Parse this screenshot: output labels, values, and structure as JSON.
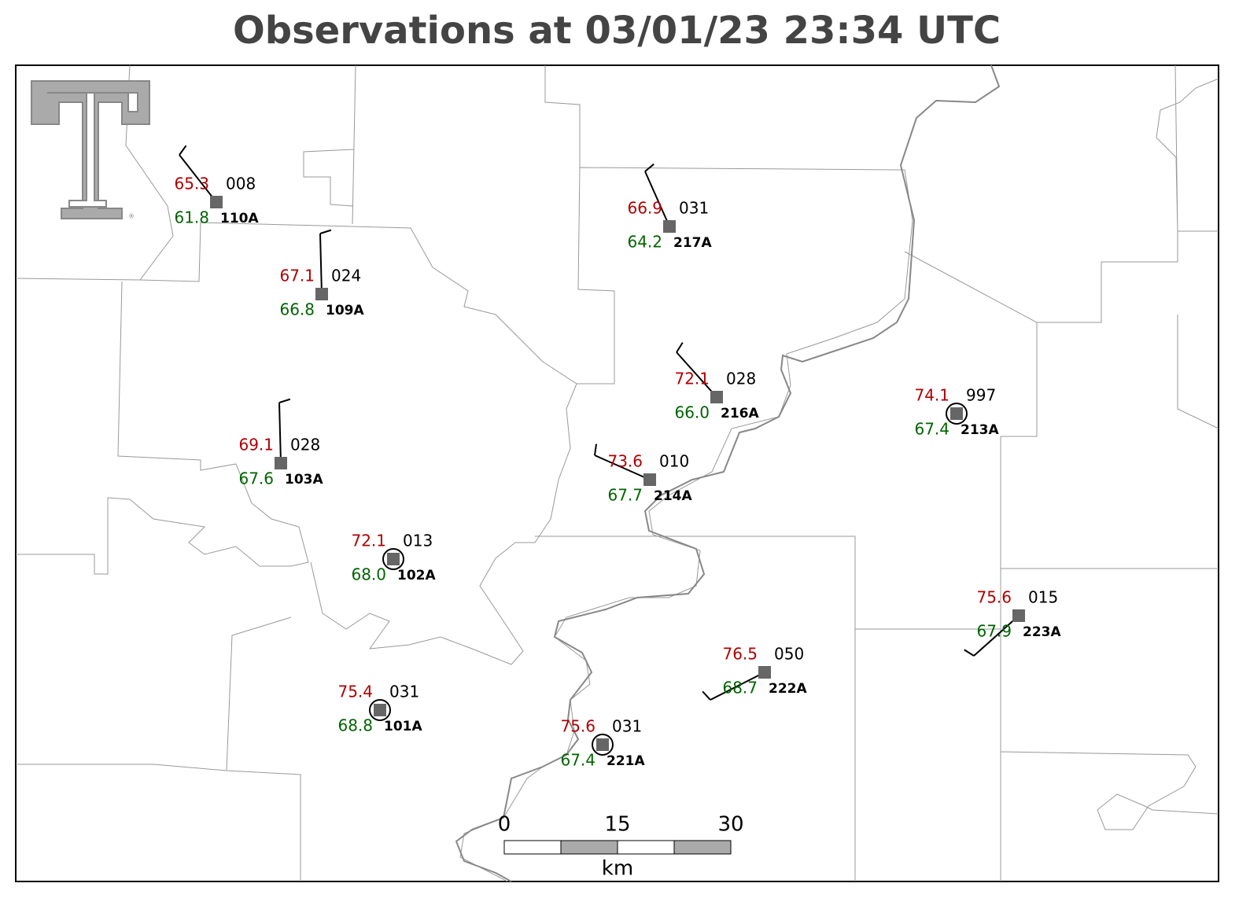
{
  "title": "Observations at 03/01/23 23:34 UTC",
  "logo": {
    "mark": "®"
  },
  "stations": [
    {
      "id": "110A",
      "temperature": "65.3",
      "pressure": "008",
      "dewpoint": "61.8"
    },
    {
      "id": "109A",
      "temperature": "67.1",
      "pressure": "024",
      "dewpoint": "66.8"
    },
    {
      "id": "217A",
      "temperature": "66.9",
      "pressure": "031",
      "dewpoint": "64.2"
    },
    {
      "id": "216A",
      "temperature": "72.1",
      "pressure": "028",
      "dewpoint": "66.0"
    },
    {
      "id": "213A",
      "temperature": "74.1",
      "pressure": "997",
      "dewpoint": "67.4"
    },
    {
      "id": "103A",
      "temperature": "69.1",
      "pressure": "028",
      "dewpoint": "67.6"
    },
    {
      "id": "214A",
      "temperature": "73.6",
      "pressure": "010",
      "dewpoint": "67.7"
    },
    {
      "id": "102A",
      "temperature": "72.1",
      "pressure": "013",
      "dewpoint": "68.0"
    },
    {
      "id": "223A",
      "temperature": "75.6",
      "pressure": "015",
      "dewpoint": "67.9"
    },
    {
      "id": "222A",
      "temperature": "76.5",
      "pressure": "050",
      "dewpoint": "68.7"
    },
    {
      "id": "101A",
      "temperature": "75.4",
      "pressure": "031",
      "dewpoint": "68.8"
    },
    {
      "id": "221A",
      "temperature": "75.6",
      "pressure": "031",
      "dewpoint": "67.4"
    }
  ],
  "scale_bar": {
    "ticks": [
      "0",
      "15",
      "30"
    ],
    "unit": "km"
  }
}
